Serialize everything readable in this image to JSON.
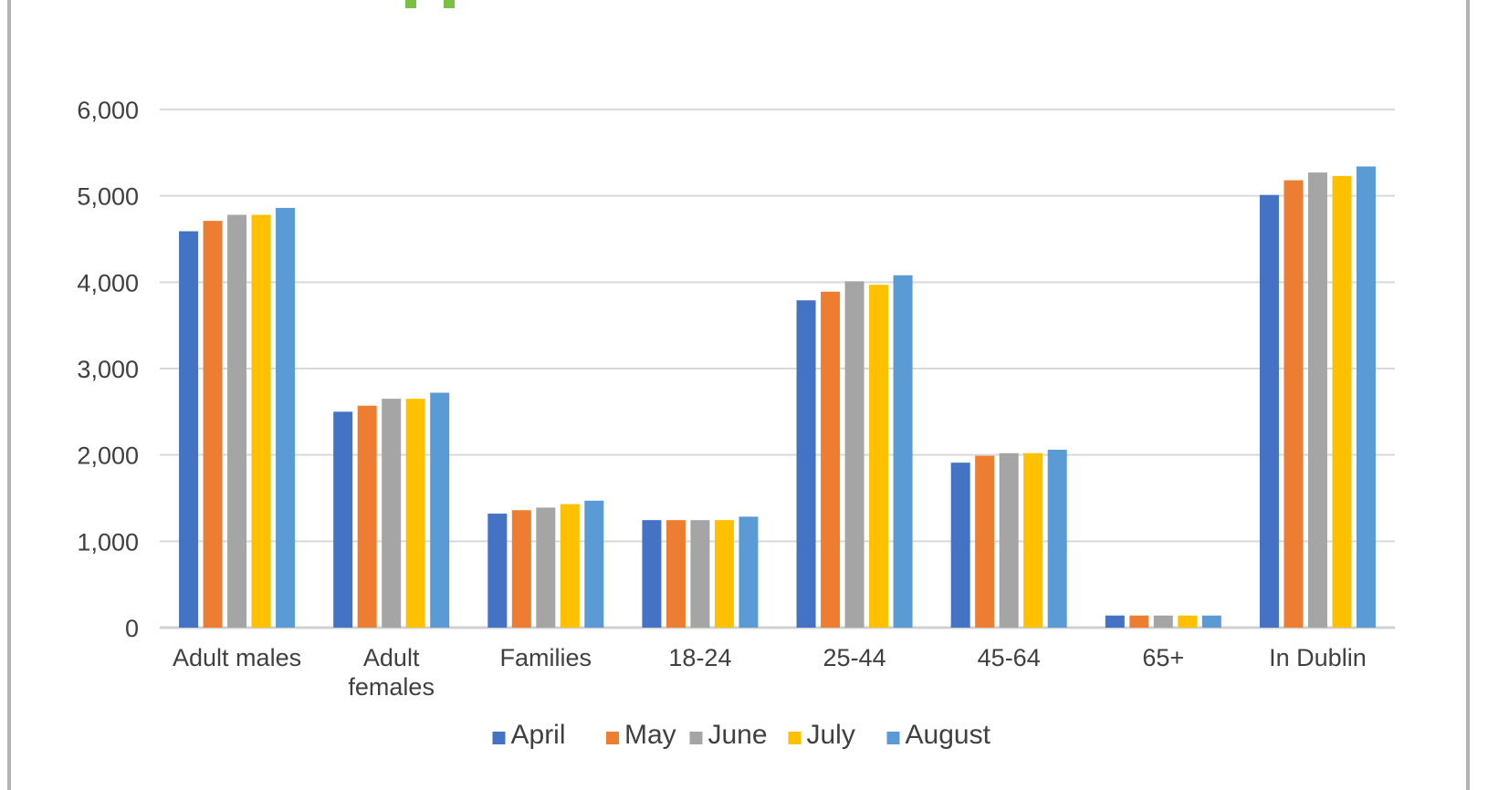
{
  "chart_data": {
    "type": "bar",
    "categories": [
      "Adult males",
      "Adult\nfemales",
      "Families",
      "18-24",
      "25-44",
      "45-64",
      "65+",
      "In Dublin"
    ],
    "series": [
      {
        "name": "April",
        "color": "#4472c4",
        "values": [
          4590,
          2500,
          1320,
          1245,
          3790,
          1910,
          140,
          5010
        ]
      },
      {
        "name": "May",
        "color": "#ed7d31",
        "values": [
          4710,
          2570,
          1360,
          1245,
          3890,
          1990,
          140,
          5180
        ]
      },
      {
        "name": "June",
        "color": "#a5a5a5",
        "values": [
          4780,
          2650,
          1390,
          1245,
          4010,
          2020,
          140,
          5270
        ]
      },
      {
        "name": "July",
        "color": "#ffc000",
        "values": [
          4780,
          2650,
          1430,
          1245,
          3970,
          2020,
          140,
          5230
        ]
      },
      {
        "name": "August",
        "color": "#5b9bd5",
        "values": [
          4860,
          2720,
          1470,
          1285,
          4080,
          2060,
          140,
          5340
        ]
      }
    ],
    "ylim": [
      0,
      6000
    ],
    "yticks": [
      0,
      1000,
      2000,
      3000,
      4000,
      5000,
      6000
    ],
    "ytick_labels": [
      "0",
      "1,000",
      "2,000",
      "3,000",
      "4,000",
      "5,000",
      "6,000"
    ],
    "grid": true,
    "legend_position": "bottom"
  }
}
